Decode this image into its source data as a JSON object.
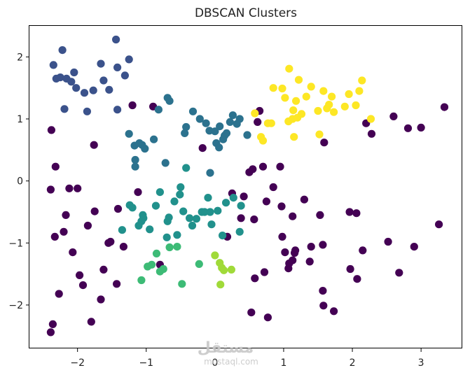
{
  "chart_data": {
    "type": "scatter",
    "title": "DBSCAN Clusters",
    "xlabel": "",
    "ylabel": "",
    "xlim": [
      -2.7,
      3.6
    ],
    "ylim": [
      -2.7,
      2.5
    ],
    "xticks": [
      -2,
      -1,
      0,
      1,
      2,
      3
    ],
    "yticks": [
      -2,
      -1,
      0,
      1,
      2
    ],
    "xtick_labels": [
      "−2",
      "−1",
      "0",
      "1",
      "2",
      "3"
    ],
    "ytick_labels": [
      "−2",
      "−1",
      "0",
      "1",
      "2"
    ],
    "grid": false,
    "legend": "none",
    "series": [
      {
        "color": "#440154",
        "points": [
          [
            -2.38,
            0.82
          ],
          [
            -2.39,
            -0.14
          ],
          [
            -2.32,
            0.23
          ],
          [
            -2.33,
            -0.9
          ],
          [
            -2.36,
            -2.31
          ],
          [
            -2.39,
            -2.44
          ],
          [
            -2.27,
            -1.82
          ],
          [
            -2.2,
            -0.82
          ],
          [
            -2.17,
            -0.55
          ],
          [
            -2.12,
            -0.12
          ],
          [
            -2.07,
            -1.15
          ],
          [
            -2.0,
            -0.12
          ],
          [
            -1.97,
            -1.52
          ],
          [
            -1.92,
            -1.68
          ],
          [
            -1.85,
            -0.72
          ],
          [
            -1.8,
            -2.27
          ],
          [
            -1.76,
            0.58
          ],
          [
            -1.75,
            -0.49
          ],
          [
            -1.66,
            -1.91
          ],
          [
            -1.62,
            -1.43
          ],
          [
            -1.55,
            -1.0
          ],
          [
            -1.43,
            -1.66
          ],
          [
            -1.41,
            -0.45
          ],
          [
            -1.33,
            -1.06
          ],
          [
            -1.2,
            1.22
          ],
          [
            -1.12,
            -0.18
          ],
          [
            -0.9,
            1.2
          ],
          [
            -0.18,
            0.53
          ],
          [
            0.25,
            -0.2
          ],
          [
            0.42,
            -0.25
          ],
          [
            0.5,
            0.14
          ],
          [
            0.53,
            -2.12
          ],
          [
            0.55,
            0.19
          ],
          [
            0.57,
            -0.62
          ],
          [
            0.58,
            -1.57
          ],
          [
            0.62,
            0.95
          ],
          [
            0.65,
            1.13
          ],
          [
            0.7,
            0.23
          ],
          [
            0.72,
            -1.47
          ],
          [
            0.77,
            -2.2
          ],
          [
            0.75,
            -0.33
          ],
          [
            0.95,
            0.23
          ],
          [
            0.97,
            -0.41
          ],
          [
            0.98,
            -0.9
          ],
          [
            1.02,
            -1.15
          ],
          [
            1.07,
            -1.41
          ],
          [
            1.08,
            -1.33
          ],
          [
            1.13,
            -1.28
          ],
          [
            1.13,
            -0.57
          ],
          [
            1.16,
            -1.16
          ],
          [
            1.17,
            -1.12
          ],
          [
            1.3,
            -0.3
          ],
          [
            1.38,
            -1.3
          ],
          [
            1.4,
            -1.06
          ],
          [
            1.53,
            -0.55
          ],
          [
            1.57,
            -1.03
          ],
          [
            1.57,
            -1.77
          ],
          [
            1.58,
            -2.01
          ],
          [
            1.59,
            0.62
          ],
          [
            1.73,
            -2.1
          ],
          [
            1.96,
            -0.5
          ],
          [
            1.97,
            -1.42
          ],
          [
            2.06,
            -0.52
          ],
          [
            2.07,
            -1.58
          ],
          [
            2.15,
            -1.12
          ],
          [
            2.2,
            0.93
          ],
          [
            2.28,
            0.76
          ],
          [
            2.52,
            -0.98
          ],
          [
            2.6,
            1.04
          ],
          [
            2.68,
            -1.48
          ],
          [
            2.81,
            0.85
          ],
          [
            2.9,
            -1.06
          ],
          [
            3.0,
            0.86
          ],
          [
            3.26,
            -0.7
          ],
          [
            3.34,
            1.19
          ],
          [
            -1.52,
            -0.98
          ],
          [
            -0.8,
            -1.35
          ],
          [
            0.18,
            -0.9
          ],
          [
            0.38,
            -0.6
          ],
          [
            0.85,
            -0.1
          ]
        ]
      },
      {
        "color": "#3b528b",
        "points": [
          [
            -2.35,
            1.87
          ],
          [
            -2.31,
            1.65
          ],
          [
            -2.25,
            1.67
          ],
          [
            -2.22,
            2.11
          ],
          [
            -2.19,
            1.16
          ],
          [
            -2.16,
            1.65
          ],
          [
            -2.09,
            1.6
          ],
          [
            -2.05,
            1.75
          ],
          [
            -2.02,
            1.5
          ],
          [
            -1.9,
            1.42
          ],
          [
            -1.86,
            1.12
          ],
          [
            -1.77,
            1.46
          ],
          [
            -1.66,
            1.89
          ],
          [
            -1.62,
            1.62
          ],
          [
            -1.54,
            1.47
          ],
          [
            -1.44,
            2.28
          ],
          [
            -1.42,
            1.83
          ],
          [
            -1.42,
            1.15
          ],
          [
            -1.31,
            1.7
          ],
          [
            -1.25,
            1.96
          ]
        ]
      },
      {
        "color": "#2c728e",
        "points": [
          [
            -1.25,
            0.76
          ],
          [
            -1.17,
            0.57
          ],
          [
            -1.16,
            0.34
          ],
          [
            -1.16,
            0.23
          ],
          [
            -1.1,
            0.61
          ],
          [
            -1.06,
            0.58
          ],
          [
            -1.02,
            0.52
          ],
          [
            -0.89,
            0.67
          ],
          [
            -0.82,
            1.15
          ],
          [
            -0.72,
            0.29
          ],
          [
            -0.69,
            1.34
          ],
          [
            -0.66,
            1.29
          ],
          [
            -0.44,
            0.77
          ],
          [
            -0.42,
            0.87
          ],
          [
            -0.32,
            1.12
          ],
          [
            -0.22,
            1.0
          ],
          [
            -0.13,
            0.93
          ],
          [
            -0.08,
            0.81
          ],
          [
            -0.07,
            0.13
          ],
          [
            0.0,
            0.8
          ],
          [
            0.02,
            0.61
          ],
          [
            0.06,
            0.54
          ],
          [
            0.07,
            0.88
          ],
          [
            0.12,
            0.67
          ],
          [
            0.14,
            0.73
          ],
          [
            0.17,
            0.77
          ],
          [
            0.22,
            0.95
          ],
          [
            0.26,
            1.06
          ],
          [
            0.32,
            0.92
          ],
          [
            0.36,
            1.0
          ],
          [
            0.47,
            0.74
          ]
        ]
      },
      {
        "color": "#21918c",
        "points": [
          [
            -1.35,
            -0.79
          ],
          [
            -1.24,
            -0.39
          ],
          [
            -1.2,
            -0.43
          ],
          [
            -1.11,
            -0.72
          ],
          [
            -1.07,
            -0.65
          ],
          [
            -1.05,
            -0.55
          ],
          [
            -1.04,
            -0.6
          ],
          [
            -0.95,
            -0.78
          ],
          [
            -0.86,
            -0.4
          ],
          [
            -0.8,
            -0.18
          ],
          [
            -0.7,
            -0.91
          ],
          [
            -0.69,
            -0.65
          ],
          [
            -0.67,
            -0.59
          ],
          [
            -0.59,
            -0.33
          ],
          [
            -0.55,
            -0.87
          ],
          [
            -0.51,
            -0.22
          ],
          [
            -0.5,
            -0.1
          ],
          [
            -0.46,
            -0.49
          ],
          [
            -0.42,
            0.21
          ],
          [
            -0.37,
            -0.6
          ],
          [
            -0.33,
            -0.72
          ],
          [
            -0.27,
            -0.61
          ],
          [
            -0.19,
            -0.5
          ],
          [
            -0.15,
            -0.5
          ],
          [
            -0.1,
            -0.27
          ],
          [
            -0.07,
            -0.5
          ],
          [
            -0.05,
            -0.7
          ],
          [
            0.04,
            -0.48
          ],
          [
            0.11,
            -0.88
          ],
          [
            0.16,
            -0.35
          ],
          [
            0.27,
            -0.27
          ],
          [
            0.36,
            -0.82
          ],
          [
            0.38,
            -0.4
          ]
        ]
      },
      {
        "color": "#3dbb76",
        "points": [
          [
            -1.07,
            -1.6
          ],
          [
            -0.98,
            -1.38
          ],
          [
            -0.92,
            -1.35
          ],
          [
            -0.85,
            -1.17
          ],
          [
            -0.8,
            -1.46
          ],
          [
            -0.75,
            -1.42
          ],
          [
            -0.66,
            -1.07
          ],
          [
            -0.55,
            -1.06
          ],
          [
            -0.48,
            -1.66
          ],
          [
            -0.23,
            -1.34
          ]
        ]
      },
      {
        "color": "#a0da39",
        "points": [
          [
            0.0,
            -1.2
          ],
          [
            0.07,
            -1.32
          ],
          [
            0.08,
            -1.67
          ],
          [
            0.1,
            -1.4
          ],
          [
            0.13,
            -1.44
          ],
          [
            0.24,
            -1.43
          ]
        ]
      },
      {
        "color": "#fde725",
        "points": [
          [
            0.58,
            1.09
          ],
          [
            0.67,
            0.71
          ],
          [
            0.7,
            0.65
          ],
          [
            0.77,
            0.93
          ],
          [
            0.82,
            0.93
          ],
          [
            0.85,
            1.5
          ],
          [
            0.98,
            1.49
          ],
          [
            1.02,
            1.34
          ],
          [
            1.07,
            0.96
          ],
          [
            1.08,
            1.81
          ],
          [
            1.13,
            1.0
          ],
          [
            1.14,
            1.14
          ],
          [
            1.15,
            0.71
          ],
          [
            1.18,
            1.29
          ],
          [
            1.2,
            1.02
          ],
          [
            1.22,
            1.63
          ],
          [
            1.26,
            1.08
          ],
          [
            1.33,
            1.36
          ],
          [
            1.4,
            1.52
          ],
          [
            1.5,
            1.13
          ],
          [
            1.52,
            0.75
          ],
          [
            1.58,
            1.45
          ],
          [
            1.63,
            1.17
          ],
          [
            1.66,
            1.23
          ],
          [
            1.7,
            1.36
          ],
          [
            1.73,
            1.11
          ],
          [
            1.89,
            1.2
          ],
          [
            1.95,
            1.4
          ],
          [
            2.05,
            1.22
          ],
          [
            2.1,
            1.45
          ],
          [
            2.14,
            1.62
          ],
          [
            2.27,
            1.0
          ]
        ]
      }
    ]
  },
  "watermark": {
    "brand_ar": "مستقل",
    "site": "mostaql.com"
  }
}
